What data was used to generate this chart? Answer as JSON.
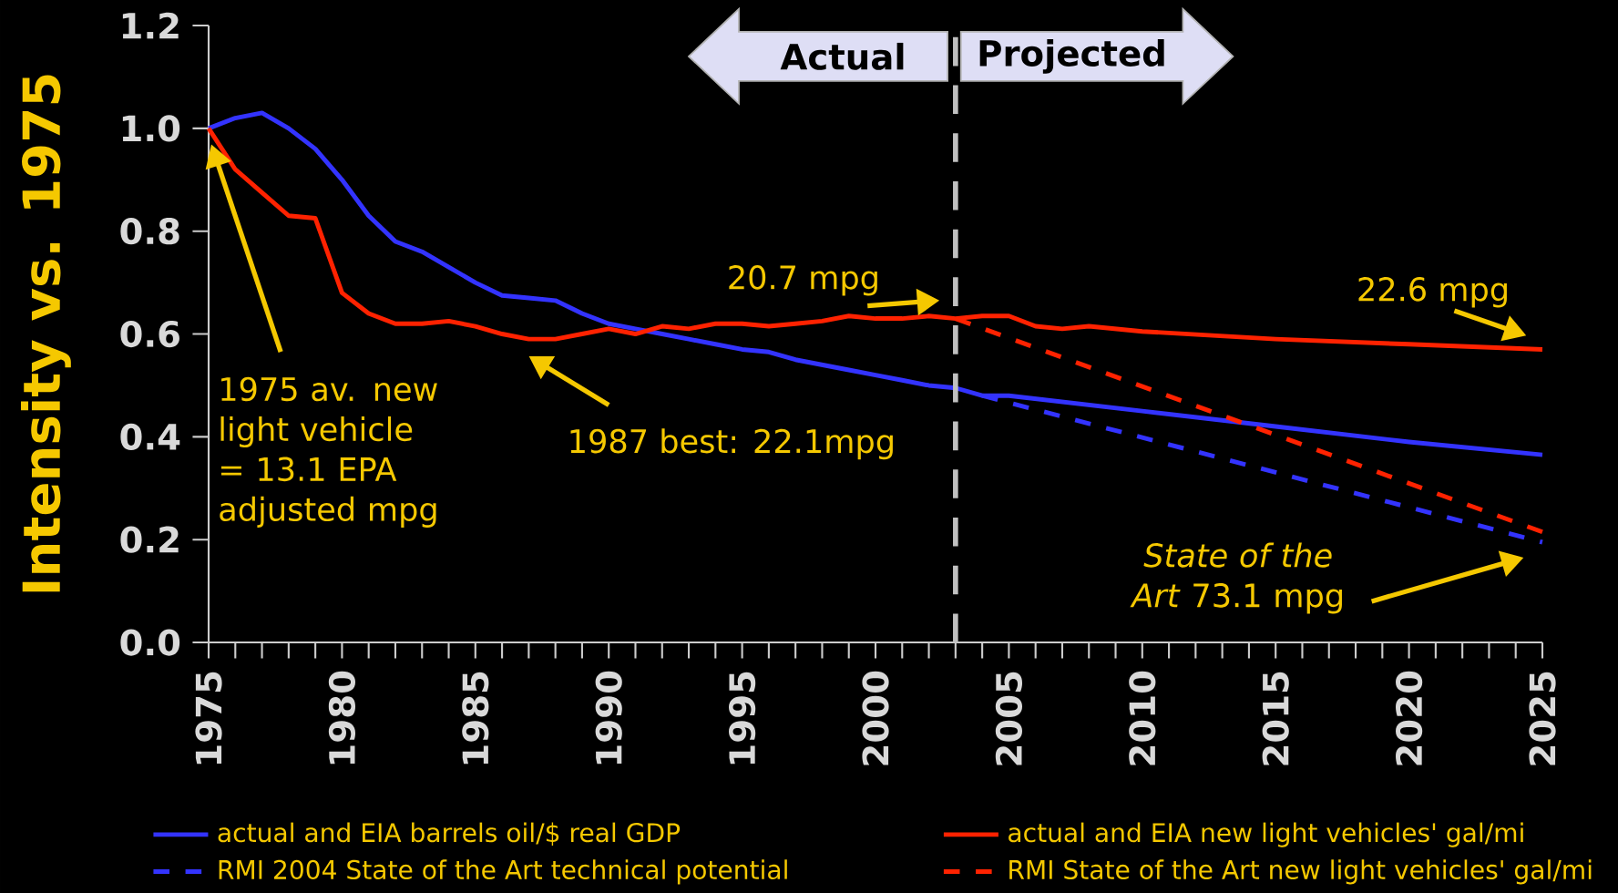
{
  "chart_data": {
    "type": "line",
    "ylabel": "Intensity vs. 1975",
    "xlim": [
      1975,
      2025
    ],
    "ylim": [
      0,
      1.2
    ],
    "xticks": [
      1975,
      1980,
      1985,
      1990,
      1995,
      2000,
      2005,
      2010,
      2015,
      2020,
      2025
    ],
    "yticks": [
      {
        "value": 0,
        "label": "0.0"
      },
      0.2,
      0.4,
      0.6,
      0.8,
      {
        "value": 1,
        "label": "1.0"
      },
      1.2
    ],
    "legend": "bottom",
    "series": [
      {
        "name": "actual and EIA barrels oil/$ real GDP",
        "color": "#3333ff",
        "line_style": "solid",
        "x": [
          1975,
          1976,
          1977,
          1978,
          1979,
          1980,
          1981,
          1982,
          1983,
          1984,
          1985,
          1986,
          1987,
          1988,
          1989,
          1990,
          1991,
          1992,
          1993,
          1994,
          1995,
          1996,
          1997,
          1998,
          1999,
          2000,
          2001,
          2002,
          2003,
          2004,
          2005,
          2010,
          2015,
          2020,
          2025
        ],
        "values": [
          1.0,
          1.02,
          1.03,
          1.0,
          0.96,
          0.9,
          0.83,
          0.78,
          0.76,
          0.73,
          0.7,
          0.675,
          0.67,
          0.665,
          0.64,
          0.62,
          0.61,
          0.6,
          0.59,
          0.58,
          0.57,
          0.565,
          0.55,
          0.54,
          0.53,
          0.52,
          0.51,
          0.5,
          0.495,
          0.48,
          0.48,
          0.45,
          0.42,
          0.39,
          0.365
        ]
      },
      {
        "name": "actual and EIA new light vehicles' gal/mi",
        "color": "#ff2200",
        "line_style": "solid",
        "x": [
          1975,
          1976,
          1977,
          1978,
          1979,
          1980,
          1981,
          1982,
          1983,
          1984,
          1985,
          1986,
          1987,
          1988,
          1989,
          1990,
          1991,
          1992,
          1993,
          1994,
          1995,
          1996,
          1997,
          1998,
          1999,
          2000,
          2001,
          2002,
          2003,
          2004,
          2005,
          2006,
          2007,
          2008,
          2010,
          2015,
          2020,
          2025
        ],
        "values": [
          1.0,
          0.92,
          0.875,
          0.83,
          0.825,
          0.68,
          0.64,
          0.62,
          0.62,
          0.625,
          0.615,
          0.6,
          0.59,
          0.59,
          0.6,
          0.61,
          0.6,
          0.615,
          0.61,
          0.62,
          0.62,
          0.615,
          0.62,
          0.625,
          0.635,
          0.63,
          0.63,
          0.635,
          0.63,
          0.635,
          0.635,
          0.615,
          0.61,
          0.615,
          0.605,
          0.59,
          0.58,
          0.57
        ]
      },
      {
        "name": "RMI 2004 State of the Art technical potential",
        "color": "#3333ff",
        "line_style": "dashed",
        "x": [
          2004,
          2025
        ],
        "values": [
          0.48,
          0.195
        ]
      },
      {
        "name": "RMI State of the Art new light vehicles' gal/mi",
        "color": "#ff2200",
        "line_style": "dashed",
        "x": [
          2003,
          2025
        ],
        "values": [
          0.63,
          0.215
        ]
      }
    ],
    "ref_lines": [
      {
        "axis": "x",
        "value": 2003,
        "color": "#c0c0c0",
        "line_style": "dashed"
      }
    ],
    "annotations": [
      "Actual",
      "Projected",
      {
        "text": "20.7 mpg",
        "x": 2003,
        "y": 0.63
      },
      {
        "text": "22.6 mpg",
        "x": 2025,
        "y": 0.57
      },
      "1987 best: 22.1mpg",
      "1975 av. new light vehicle = 13.1 EPA adjusted mpg",
      "*State of the Art* 73.1 mpg"
    ]
  }
}
